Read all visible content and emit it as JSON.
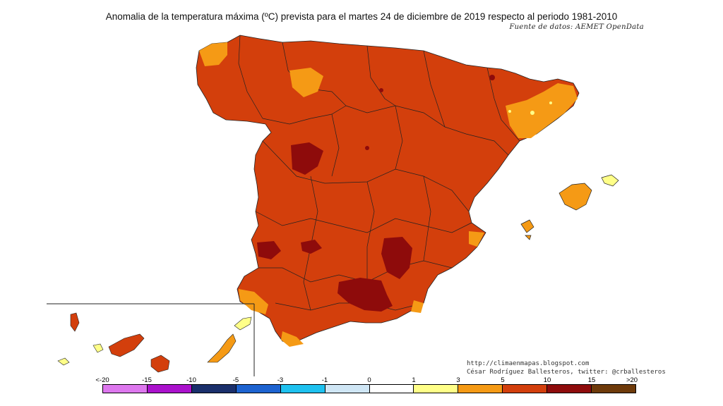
{
  "title": "Anomalia de la temperatura máxima (ºC) prevista para el martes 24 de diciembre de 2019 respecto al periodo 1981-2010",
  "source": "Fuente de datos: AEMET OpenData",
  "credits": {
    "line1": "http://climaenmapas.blogspot.com",
    "line2": "César Rodríguez Ballesteros, twitter: @crballesteros"
  },
  "legend": {
    "labels": [
      "<-20",
      "-15",
      "-10",
      "-5",
      "-3",
      "-1",
      "0",
      "1",
      "3",
      "5",
      "10",
      "15",
      ">20"
    ],
    "colors": [
      "#dd77ee",
      "#aa11cc",
      "#1a2f6b",
      "#1d63d0",
      "#1ec1ef",
      "#cfe6f5",
      "#ffffff",
      "#ffff88",
      "#f59a15",
      "#d33f0c",
      "#8e0b0b",
      "#6e3a0a"
    ]
  },
  "map_colors": {
    "anomaly_5_10": "#d33f0c",
    "anomaly_10_15": "#8e0b0b",
    "anomaly_3_5": "#f59a15",
    "anomaly_1_3": "#ffff88",
    "border": "#222222"
  }
}
